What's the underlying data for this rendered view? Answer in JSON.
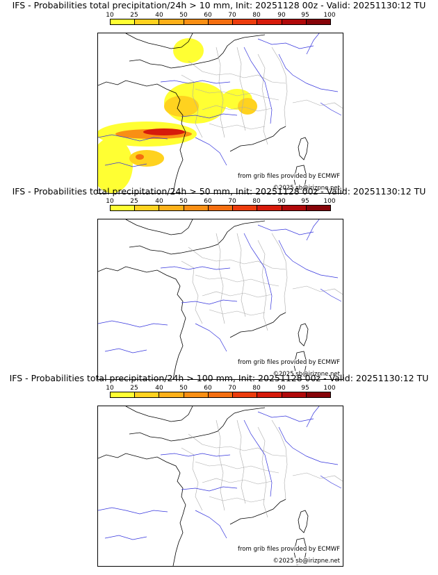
{
  "colorbar": {
    "ticks": [
      "10",
      "25",
      "40",
      "50",
      "60",
      "70",
      "80",
      "90",
      "95",
      "100"
    ],
    "colors": [
      "#ffff33",
      "#ffd21f",
      "#fdb019",
      "#f98f14",
      "#f46e10",
      "#ec3c0d",
      "#d61b0b",
      "#b0090a",
      "#860409",
      "#5c0206"
    ]
  },
  "credits": {
    "source": "from grib files provided by ECMWF",
    "copyright": "©2025 sb@irizpne.net"
  },
  "palette": {
    "coast": "#000000",
    "rivers": "#3333dd",
    "borders": "#aaaaaa"
  },
  "panels": [
    {
      "title": "IFS - Probabilities total precipitation/24h > 10 mm, Init: 20251128 00z - Valid: 20251130:12 TU",
      "threshold_mm": 10
    },
    {
      "title": "IFS - Probabilities total precipitation/24h > 50 mm, Init: 20251128 00z - Valid: 20251130:12 TU",
      "threshold_mm": 50
    },
    {
      "title": "IFS - Probabilities total precipitation/24h > 100 mm, Init: 20251128 00z - Valid: 20251130:12 TU",
      "threshold_mm": 100
    }
  ]
}
